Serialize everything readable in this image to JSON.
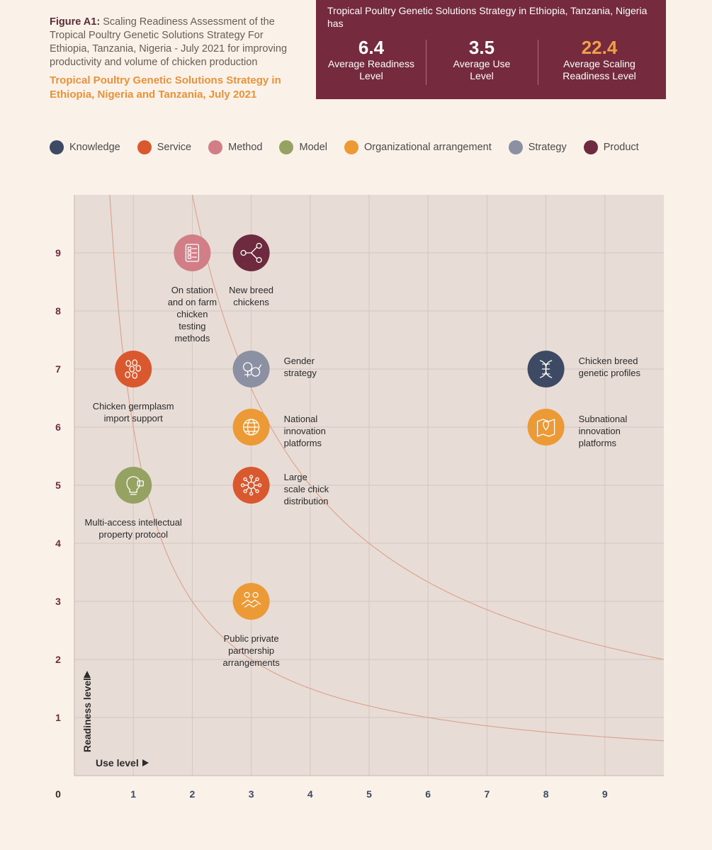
{
  "caption": {
    "figure_label": "Figure A1:",
    "figure_text": "Scaling Readiness Assessment of the Tropical Poultry Genetic Solutions Strategy For Ethiopia, Tanzania, Nigeria - July 2021 for  improving productivity and volume of chicken production",
    "subtitle": "Tropical Poultry Genetic Solutions Strategy in Ethiopia, Nigeria and Tanzania, July 2021"
  },
  "summary": {
    "intro": "Tropical Poultry Genetic Solutions Strategy in Ethiopia, Tanzania, Nigeria has",
    "stats": [
      {
        "value": "6.4",
        "label": "Average Readiness Level"
      },
      {
        "value": "3.5",
        "label": "Average Use Level"
      },
      {
        "value": "22.4",
        "label": "Average Scaling Readiness Level"
      }
    ]
  },
  "legend": [
    {
      "name": "Knowledge",
      "color": "#3e4a63"
    },
    {
      "name": "Service",
      "color": "#d9582e"
    },
    {
      "name": "Method",
      "color": "#d17e86"
    },
    {
      "name": "Model",
      "color": "#96a262"
    },
    {
      "name": "Organizational arrangement",
      "color": "#ec9a35"
    },
    {
      "name": "Strategy",
      "color": "#8c90a3"
    },
    {
      "name": "Product",
      "color": "#6e2a3f"
    }
  ],
  "chart_data": {
    "type": "scatter",
    "xlabel": "Use level",
    "ylabel": "Readiness level",
    "xlim": [
      0,
      10
    ],
    "ylim": [
      0,
      10
    ],
    "origin_label": "0",
    "x_ticks": [
      1,
      2,
      3,
      4,
      5,
      6,
      7,
      8,
      9
    ],
    "y_ticks": [
      1,
      2,
      3,
      4,
      5,
      6,
      7,
      8,
      9
    ],
    "grid": true,
    "curves": [
      {
        "name": "product-6",
        "k": 6
      },
      {
        "name": "product-20",
        "k": 20
      }
    ],
    "points": [
      {
        "label": "On station and on farm chicken testing methods",
        "lines": [
          "On station",
          "and on farm",
          "chicken",
          "testing",
          "methods"
        ],
        "x": 2,
        "y": 9,
        "category": "Method",
        "icon": "checklist-icon",
        "label_pos": "below"
      },
      {
        "label": "New breed chickens",
        "lines": [
          "New breed",
          "chickens"
        ],
        "x": 3,
        "y": 9,
        "category": "Product",
        "icon": "branching-icon",
        "label_pos": "below"
      },
      {
        "label": "Chicken germplasm import support",
        "lines": [
          "Chicken germplasm",
          "import support"
        ],
        "x": 1,
        "y": 7,
        "category": "Service",
        "icon": "eggs-icon",
        "label_pos": "below"
      },
      {
        "label": "Gender strategy",
        "lines": [
          "Gender",
          "strategy"
        ],
        "x": 3,
        "y": 7,
        "category": "Strategy",
        "icon": "gender-icon",
        "label_pos": "right"
      },
      {
        "label": "Chicken breed genetic profiles",
        "lines": [
          "Chicken breed",
          "genetic profiles"
        ],
        "x": 8,
        "y": 7,
        "category": "Knowledge",
        "icon": "dna-icon",
        "label_pos": "right"
      },
      {
        "label": "National innovation platforms",
        "lines": [
          "National",
          "innovation",
          "platforms"
        ],
        "x": 3,
        "y": 6,
        "category": "Organizational arrangement",
        "icon": "globe-icon",
        "label_pos": "right"
      },
      {
        "label": "Subnational innovation platforms",
        "lines": [
          "Subnational",
          "innovation",
          "platforms"
        ],
        "x": 8,
        "y": 6,
        "category": "Organizational arrangement",
        "icon": "map-pin-icon",
        "label_pos": "right"
      },
      {
        "label": "Multi-access intellectual property protocol",
        "lines": [
          "Multi-access intellectual",
          "property protocol"
        ],
        "x": 1,
        "y": 5,
        "category": "Model",
        "icon": "lightbulb-lock-icon",
        "label_pos": "below"
      },
      {
        "label": "Large scale chick distribution",
        "lines": [
          "Large",
          "scale chick",
          "distribution"
        ],
        "x": 3,
        "y": 5,
        "category": "Service",
        "icon": "network-icon",
        "label_pos": "right"
      },
      {
        "label": "Public private partnership arrangements",
        "lines": [
          "Public private",
          "partnership",
          "arrangements"
        ],
        "x": 3,
        "y": 3,
        "category": "Organizational arrangement",
        "icon": "handshake-icon",
        "label_pos": "below"
      }
    ]
  }
}
